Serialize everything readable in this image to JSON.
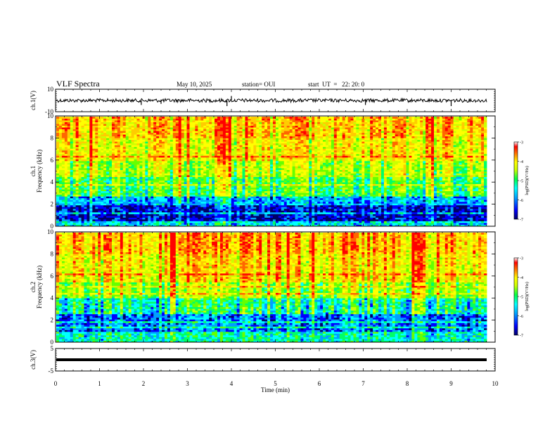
{
  "header": {
    "title": "VLF Spectra",
    "date": "May 10, 2025",
    "station": "station= OUI",
    "start": "start  UT  =   22: 20: 0"
  },
  "colors": {
    "background": "#ffffff",
    "axis": "#000000",
    "colormap": [
      "#000066",
      "#0000ff",
      "#00a0ff",
      "#00ffff",
      "#00ff66",
      "#66ff00",
      "#ccff00",
      "#ffff00",
      "#ffcc00",
      "#ff6600",
      "#ff0000",
      "#ffffff"
    ]
  },
  "chart_data": [
    {
      "type": "line",
      "ylabel": "ch.1(V)",
      "ylim": [
        -10,
        10
      ],
      "yticks": [
        -10,
        10
      ],
      "xlim": [
        0,
        10
      ],
      "trace_level_v": 0,
      "spike_times_min": [
        1.95,
        2.4,
        3.9,
        4.0,
        7.05,
        9.0
      ],
      "spike_values_v": [
        -4,
        -3,
        -5,
        4,
        -4,
        -5
      ]
    },
    {
      "type": "heatmap",
      "ylabel": "ch.1\nFrequency  (kHz)",
      "ylim": [
        0,
        10
      ],
      "yticks": [
        0,
        2,
        4,
        6,
        8,
        10
      ],
      "xlim": [
        0,
        9.8
      ],
      "colorbar": {
        "label": "log(PSD)(V²/Hz)",
        "range": [
          -7,
          -3
        ],
        "ticks": [
          -7,
          -6,
          -5,
          -4,
          -3
        ]
      },
      "bands": [
        {
          "f_range_khz": [
            0,
            0.5
          ],
          "level": -5.8
        },
        {
          "f_range_khz": [
            0.5,
            2.0
          ],
          "level": -6.6
        },
        {
          "f_range_khz": [
            2.0,
            2.8
          ],
          "level": -6.0
        },
        {
          "f_range_khz": [
            2.8,
            4.5
          ],
          "level": -5.2
        },
        {
          "f_range_khz": [
            4.5,
            6.0
          ],
          "level": -4.7
        },
        {
          "f_range_khz": [
            6.0,
            8.0
          ],
          "level": -4.3
        },
        {
          "f_range_khz": [
            8.0,
            10.0
          ],
          "level": -4.0
        }
      ]
    },
    {
      "type": "heatmap",
      "ylabel": "ch.2\nFrequency  (kHz)",
      "ylim": [
        0,
        10
      ],
      "yticks": [
        0,
        2,
        4,
        6,
        8,
        10
      ],
      "xlim": [
        0,
        9.8
      ],
      "colorbar": {
        "label": "log(PSD)(V²/Hz)",
        "range": [
          -7,
          -3
        ],
        "ticks": [
          -7,
          -6,
          -5,
          -4,
          -3
        ]
      },
      "bands": [
        {
          "f_range_khz": [
            0,
            1.0
          ],
          "level": -5.6
        },
        {
          "f_range_khz": [
            1.0,
            2.5
          ],
          "level": -6.2
        },
        {
          "f_range_khz": [
            2.5,
            4.0
          ],
          "level": -5.5
        },
        {
          "f_range_khz": [
            4.0,
            5.5
          ],
          "level": -4.8
        },
        {
          "f_range_khz": [
            5.5,
            8.0
          ],
          "level": -4.2
        },
        {
          "f_range_khz": [
            8.0,
            10.0
          ],
          "level": -3.9
        }
      ]
    },
    {
      "type": "line",
      "ylabel": "ch.3(V)",
      "ylim": [
        -5,
        5
      ],
      "yticks": [
        -5,
        5
      ],
      "xlim": [
        0,
        10
      ],
      "trace_level_v": 0
    }
  ],
  "x_axis": {
    "label": "Time  (min)",
    "range": [
      0,
      10
    ],
    "ticks": [
      0,
      1,
      2,
      3,
      4,
      5,
      6,
      7,
      8,
      9,
      10
    ]
  }
}
